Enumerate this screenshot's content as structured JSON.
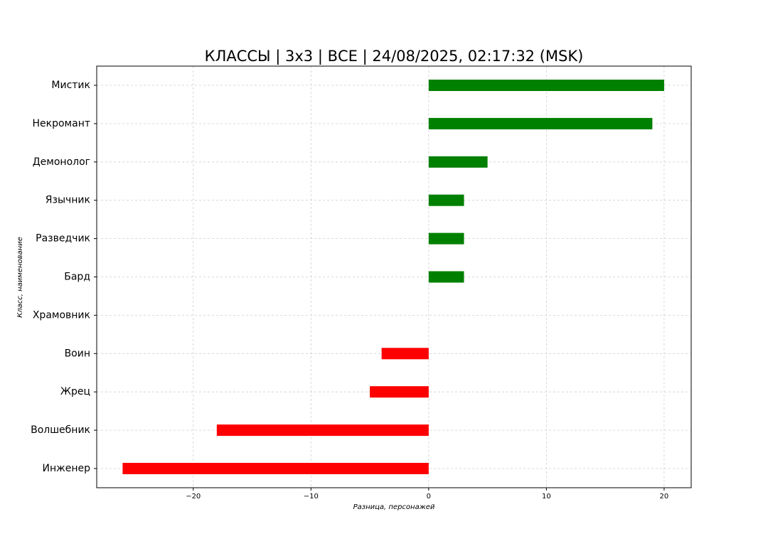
{
  "chart_data": {
    "type": "barh",
    "title": "КЛАССЫ | 3х3 | ВСЕ | 24/08/2025, 02:17:32 (MSK)",
    "x_label": "Разница, персонажей",
    "y_label": "Класс, наименование",
    "categories": [
      "Мистик",
      "Некромант",
      "Демонолог",
      "Язычник",
      "Разведчик",
      "Бард",
      "Храмовник",
      "Воин",
      "Жрец",
      "Волшебник",
      "Инженер"
    ],
    "values": [
      20,
      19,
      5,
      3,
      3,
      3,
      0,
      -4,
      -5,
      -18,
      -26
    ],
    "positive_color": "#008000",
    "negative_color": "#ff0000",
    "xlim": [
      -28.2,
      22.3
    ],
    "xticks": [
      {
        "value": -20,
        "label": "−20"
      },
      {
        "value": -10,
        "label": "−10"
      },
      0,
      10,
      20
    ],
    "grid": true
  }
}
